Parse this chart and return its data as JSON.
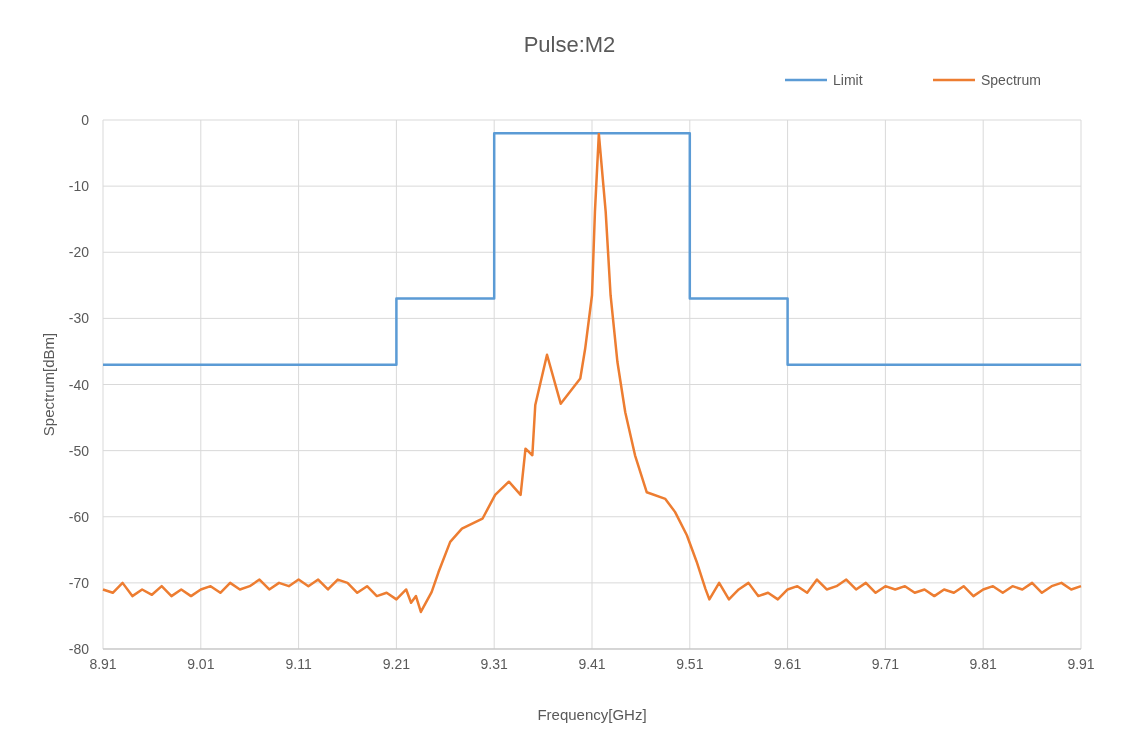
{
  "chart_data": {
    "type": "line",
    "title": "Pulse:M2",
    "xlabel": "Frequency[GHz]",
    "ylabel": "Spectrum[dBm]",
    "xlim": [
      8.91,
      9.91
    ],
    "xticks": [
      8.91,
      9.01,
      9.11,
      9.21,
      9.31,
      9.41,
      9.51,
      9.61,
      9.71,
      9.81,
      9.91
    ],
    "ylim": [
      -80,
      0
    ],
    "yticks": [
      -80,
      -70,
      -60,
      -50,
      -40,
      -30,
      -20,
      -10,
      0
    ],
    "grid": true,
    "legend": "top right",
    "marker": "none",
    "line_style": "solid",
    "series": [
      {
        "name": "Limit",
        "type": "step",
        "color": "#5b9bd5",
        "x": [
          8.91,
          9.21,
          9.31,
          9.51,
          9.61,
          9.91
        ],
        "values": [
          -37,
          -27,
          -2,
          -27,
          -37,
          -37
        ]
      },
      {
        "name": "Spectrum",
        "color": "#ed7d31",
        "x": [
          8.91,
          8.92,
          8.93,
          8.94,
          8.95,
          8.96,
          8.97,
          8.98,
          8.99,
          9.0,
          9.01,
          9.02,
          9.03,
          9.04,
          9.05,
          9.06,
          9.07,
          9.08,
          9.09,
          9.1,
          9.11,
          9.12,
          9.13,
          9.14,
          9.15,
          9.16,
          9.17,
          9.18,
          9.19,
          9.2,
          9.21,
          9.22,
          9.225,
          9.23,
          9.235,
          9.246,
          9.253,
          9.265,
          9.277,
          9.298,
          9.311,
          9.325,
          9.337,
          9.342,
          9.349,
          9.352,
          9.364,
          9.378,
          9.398,
          9.403,
          9.41,
          9.413,
          9.417,
          9.424,
          9.429,
          9.436,
          9.444,
          9.454,
          9.466,
          9.485,
          9.495,
          9.507,
          9.517,
          9.526,
          9.53,
          9.54,
          9.55,
          9.56,
          9.57,
          9.58,
          9.59,
          9.6,
          9.61,
          9.62,
          9.63,
          9.64,
          9.65,
          9.66,
          9.67,
          9.68,
          9.69,
          9.7,
          9.71,
          9.72,
          9.73,
          9.74,
          9.75,
          9.76,
          9.77,
          9.78,
          9.79,
          9.8,
          9.81,
          9.82,
          9.83,
          9.84,
          9.85,
          9.86,
          9.87,
          9.88,
          9.89,
          9.9,
          9.91
        ],
        "values": [
          -71,
          -71.5,
          -70,
          -72,
          -71,
          -71.8,
          -70.5,
          -72,
          -71,
          -72,
          -71,
          -70.5,
          -71.5,
          -70,
          -71,
          -70.5,
          -69.5,
          -71,
          -70,
          -70.5,
          -69.5,
          -70.5,
          -69.5,
          -71,
          -69.5,
          -70,
          -71.5,
          -70.5,
          -72,
          -71.5,
          -72.5,
          -71,
          -73,
          -72,
          -74.4,
          -71.4,
          -68.4,
          -63.8,
          -61.8,
          -60.3,
          -56.7,
          -54.7,
          -56.7,
          -49.7,
          -50.7,
          -43.1,
          -35.5,
          -42.9,
          -39.1,
          -34.6,
          -26.5,
          -13.9,
          -2.1,
          -13.9,
          -26.5,
          -36.6,
          -44.2,
          -50.7,
          -56.3,
          -57.3,
          -59.3,
          -62.8,
          -66.8,
          -70.9,
          -72.5,
          -70,
          -72.5,
          -71,
          -70,
          -72,
          -71.5,
          -72.5,
          -71,
          -70.5,
          -71.5,
          -69.5,
          -71,
          -70.5,
          -69.5,
          -71,
          -70,
          -71.5,
          -70.5,
          -71,
          -70.5,
          -71.5,
          -71,
          -72,
          -71,
          -71.5,
          -70.5,
          -72,
          -71,
          -70.5,
          -71.5,
          -70.5,
          -71,
          -70,
          -71.5,
          -70.5,
          -70,
          -71,
          -70.5
        ]
      }
    ]
  }
}
